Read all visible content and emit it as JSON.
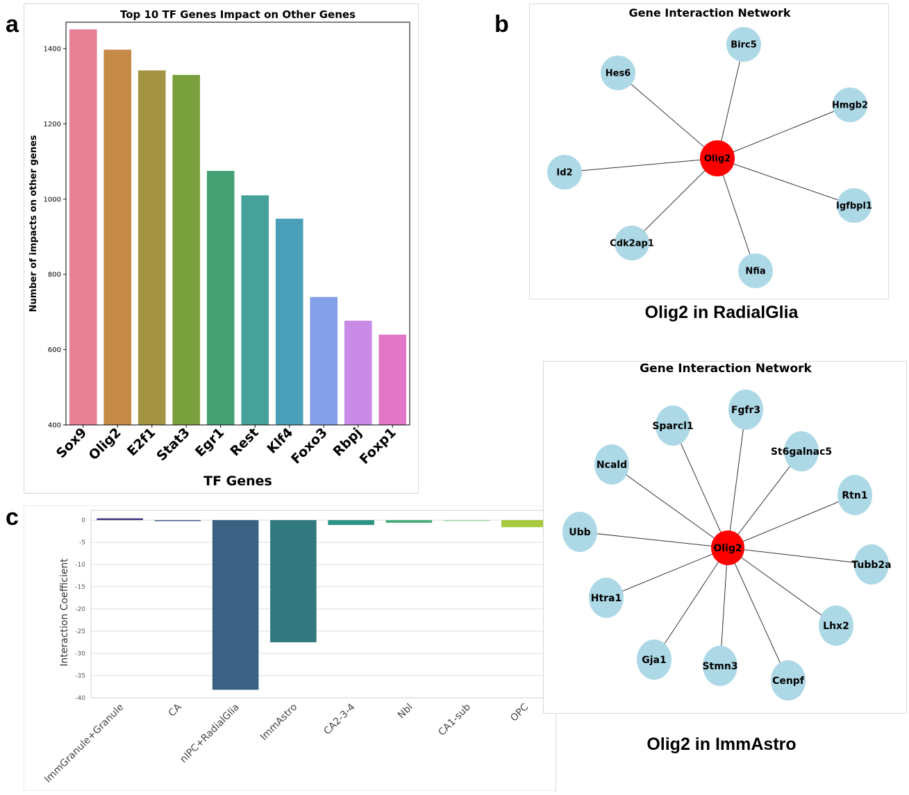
{
  "panels": {
    "a": "a",
    "b": "b",
    "c": "c"
  },
  "chart_data": [
    {
      "id": "a",
      "type": "bar",
      "title": "Top 10 TF Genes Impact on Other Genes",
      "xlabel": "TF Genes",
      "ylabel": "Number of impacts on other genes",
      "categories": [
        "Sox9",
        "Olig2",
        "E2f1",
        "Stat3",
        "Egr1",
        "Rest",
        "Klf4",
        "Foxo3",
        "Rbpj",
        "Foxp1"
      ],
      "values": [
        1451,
        1397,
        1342,
        1330,
        1075,
        1010,
        948,
        740,
        677,
        640
      ],
      "colors": [
        "#e88093",
        "#c58b46",
        "#a39343",
        "#7aa03e",
        "#45a173",
        "#46a19b",
        "#4ba0b9",
        "#84a0e8",
        "#c88be6",
        "#e176c7"
      ],
      "ylim": [
        400,
        1470
      ],
      "yticks": [
        400,
        600,
        800,
        1000,
        1200,
        1400
      ]
    },
    {
      "id": "c",
      "type": "bar",
      "title": "",
      "xlabel": "",
      "ylabel": "Interaction Coefficient",
      "categories": [
        "ImmGranule+Granule",
        "CA",
        "nIPC+RadialGlia",
        "ImmAstro",
        "CA2-3-4",
        "Nbl",
        "CA1-sub",
        "OPC"
      ],
      "values": [
        0.4,
        -0.15,
        -38.2,
        -27.5,
        -1.1,
        -0.6,
        -0.1,
        -1.6
      ],
      "colors": [
        "#45337b",
        "#405f8f",
        "#3b6282",
        "#32787f",
        "#2d9382",
        "#48ad78",
        "#a1d6a3",
        "#a7c93e"
      ],
      "ylim": [
        -40,
        2.2
      ],
      "yticks": [
        0,
        -5,
        -10,
        -15,
        -20,
        -25,
        -30,
        -35,
        -40
      ],
      "grid": true
    }
  ],
  "networks": [
    {
      "id": "b-top",
      "title": "Gene Interaction Network",
      "caption": "Olig2 in RadialGlia",
      "hub": "Olig2",
      "nodes": [
        "Birc5",
        "Hes6",
        "Hmgb2",
        "Id2",
        "Igfbpl1",
        "Cdk2ap1",
        "Nfia"
      ]
    },
    {
      "id": "b-bottom",
      "title": "Gene Interaction Network",
      "caption": "Olig2 in ImmAstro",
      "hub": "Olig2",
      "nodes": [
        "Fgfr3",
        "Sparcl1",
        "St6galnac5",
        "Ncald",
        "Rtn1",
        "Ubb",
        "Tubb2a",
        "Htra1",
        "Lhx2",
        "Gja1",
        "Stmn3",
        "Cenpf"
      ]
    }
  ],
  "colors": {
    "hub": "#ff0000",
    "node": "#add8e6",
    "edge": "#333333"
  }
}
